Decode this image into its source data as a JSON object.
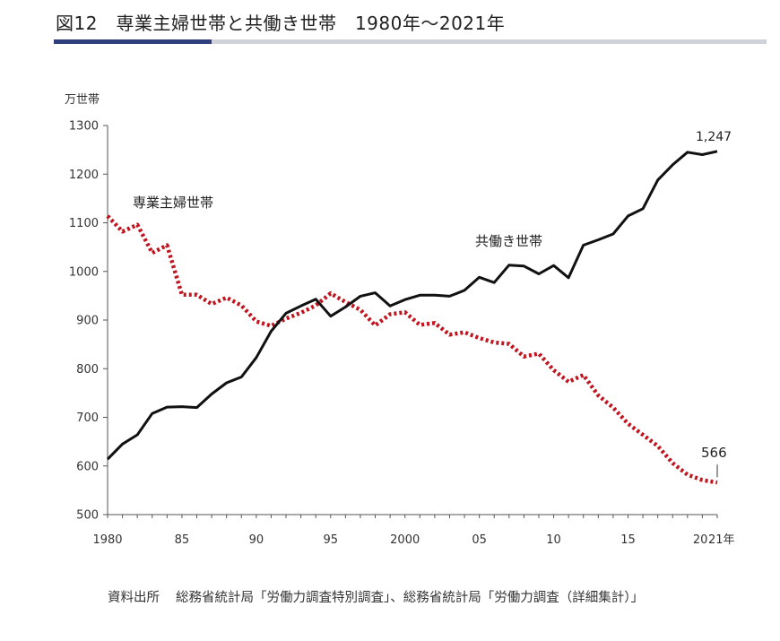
{
  "page": {
    "title": "図12　専業主婦世帯と共働き世帯　1980年～2021年",
    "source_label": "資料出所",
    "source_text": "総務省統計局「労働力調査特別調査」、総務省統計局「労働力調査（詳細集計）」",
    "colors": {
      "title_rule": "#cfd2d8",
      "title_rule_accent": "#2f3f7d"
    }
  },
  "chart_data": {
    "type": "line",
    "ylabel": "万世帯",
    "xlabel": "",
    "ylim": [
      500,
      1300
    ],
    "yticks": [
      500,
      600,
      700,
      800,
      900,
      1000,
      1100,
      1200,
      1300
    ],
    "xlim": [
      1980,
      2021
    ],
    "x_tick_labels": [
      {
        "x": 1980,
        "label": "1980"
      },
      {
        "x": 1985,
        "label": "85"
      },
      {
        "x": 1990,
        "label": "90"
      },
      {
        "x": 1995,
        "label": "95"
      },
      {
        "x": 2000,
        "label": "2000"
      },
      {
        "x": 2005,
        "label": "05"
      },
      {
        "x": 2010,
        "label": "10"
      },
      {
        "x": 2015,
        "label": "15"
      },
      {
        "x": 2020,
        "label": "20"
      },
      {
        "x": 2021,
        "label": "21年"
      }
    ],
    "grid": false,
    "x": [
      1980,
      1981,
      1982,
      1983,
      1984,
      1985,
      1986,
      1987,
      1988,
      1989,
      1990,
      1991,
      1992,
      1993,
      1994,
      1995,
      1996,
      1997,
      1998,
      1999,
      2000,
      2001,
      2002,
      2003,
      2004,
      2005,
      2006,
      2007,
      2008,
      2009,
      2010,
      2011,
      2012,
      2013,
      2014,
      2015,
      2016,
      2017,
      2018,
      2019,
      2020,
      2021
    ],
    "series": [
      {
        "name": "専業主婦世帯",
        "style": "dotted",
        "color": "#c0141e",
        "values": [
          1114,
          1082,
          1096,
          1038,
          1054,
          952,
          952,
          933,
          946,
          930,
          897,
          888,
          903,
          915,
          930,
          955,
          937,
          921,
          889,
          912,
          916,
          890,
          894,
          870,
          875,
          863,
          854,
          851,
          825,
          831,
          797,
          773,
          787,
          745,
          720,
          687,
          664,
          641,
          606,
          582,
          571,
          566
        ]
      },
      {
        "name": "共働き世帯",
        "style": "solid",
        "color": "#111111",
        "values": [
          614,
          645,
          664,
          708,
          721,
          722,
          720,
          748,
          771,
          783,
          823,
          877,
          914,
          929,
          943,
          908,
          927,
          949,
          956,
          929,
          942,
          951,
          951,
          949,
          961,
          988,
          977,
          1013,
          1011,
          995,
          1012,
          987,
          1054,
          1065,
          1077,
          1114,
          1129,
          1188,
          1219,
          1245,
          1240,
          1247
        ]
      }
    ],
    "annotations": [
      {
        "text": "1,247",
        "series": "共働き世帯",
        "x": 2021
      },
      {
        "text": "566",
        "series": "専業主婦世帯",
        "x": 2021
      }
    ]
  }
}
